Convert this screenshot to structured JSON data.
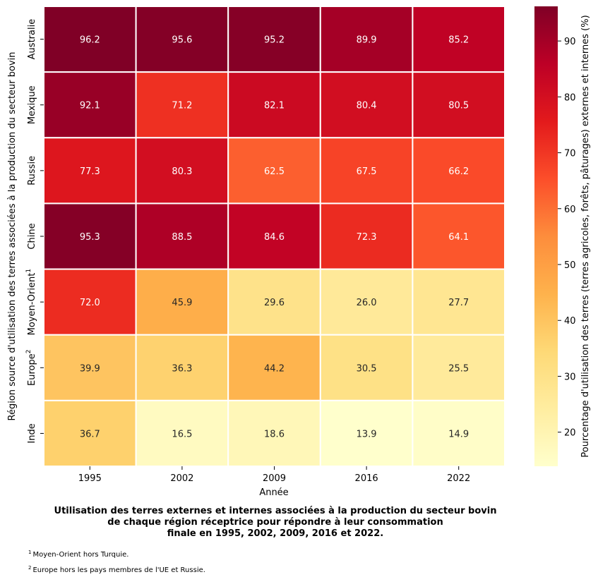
{
  "chart_data": {
    "type": "heatmap",
    "x": [
      "1995",
      "2002",
      "2009",
      "2016",
      "2022"
    ],
    "rows": [
      {
        "name": "Australie",
        "sup": "",
        "values": [
          96.2,
          95.6,
          95.2,
          89.9,
          85.2
        ]
      },
      {
        "name": "Mexique",
        "sup": "",
        "values": [
          92.1,
          71.2,
          82.1,
          80.4,
          80.5
        ]
      },
      {
        "name": "Russie",
        "sup": "",
        "values": [
          77.3,
          80.3,
          62.5,
          67.5,
          66.2
        ]
      },
      {
        "name": "Chine",
        "sup": "",
        "values": [
          95.3,
          88.5,
          84.6,
          72.3,
          64.1
        ]
      },
      {
        "name": "Moyen-Orient",
        "sup": "1",
        "values": [
          72.0,
          45.9,
          29.6,
          26.0,
          27.7
        ]
      },
      {
        "name": "Europe",
        "sup": "2",
        "values": [
          39.9,
          36.3,
          44.2,
          30.5,
          25.5
        ]
      },
      {
        "name": "Inde",
        "sup": "",
        "values": [
          36.7,
          16.5,
          18.6,
          13.9,
          14.9
        ]
      }
    ],
    "xlabel": "Année",
    "ylabel": "Région source d'utilisation des terres associées à la production du secteur bovin",
    "colorbar": {
      "label": "Pourcentage d'utilisation des terres (terres agricoles, forêts, pâturages) externes et internes (%)",
      "range": [
        13.9,
        96.2
      ],
      "ticks": [
        20,
        30,
        40,
        50,
        60,
        70,
        80,
        90
      ],
      "colormap": "YlOrRd"
    },
    "grid": false
  },
  "caption": {
    "line1": "Utilisation des terres externes et internes associées à la production du secteur bovin",
    "line2": "de chaque région réceptrice pour répondre à leur consommation",
    "line3": "finale en 1995, 2002, 2009, 2016 et 2022."
  },
  "footnotes": [
    {
      "sup": "1",
      "text": "Moyen-Orient hors Turquie."
    },
    {
      "sup": "2",
      "text": "Europe hors les pays membres de l'UE et Russie."
    }
  ]
}
